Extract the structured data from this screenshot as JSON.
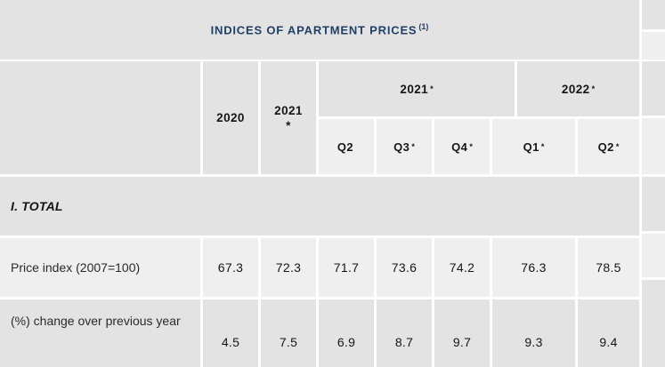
{
  "title": {
    "text": "INDICES OF APARTMENT PRICES",
    "footnote_marker": "(1)"
  },
  "colors": {
    "cell_gray": "#e3e3e3",
    "cell_light": "#efefef",
    "title_navy": "#1f4066",
    "text_dark": "#161616"
  },
  "header": {
    "year_2020": {
      "label": "2020",
      "mark": ""
    },
    "year_2021": {
      "label": "2021",
      "mark": "*"
    },
    "group_2021": {
      "label": "2021",
      "mark": "*"
    },
    "group_2022": {
      "label": "2022",
      "mark": "*"
    },
    "quarters": [
      {
        "label": "Q2",
        "mark": ""
      },
      {
        "label": "Q3",
        "mark": "*"
      },
      {
        "label": "Q4",
        "mark": "*"
      },
      {
        "label": "Q1",
        "mark": "*"
      },
      {
        "label": "Q2",
        "mark": "*"
      }
    ]
  },
  "section": {
    "label": "I. TOTAL"
  },
  "rows": [
    {
      "label": "Price index (2007=100)",
      "values": [
        "67.3",
        "72.3",
        "71.7",
        "73.6",
        "74.2",
        "76.3",
        "78.5"
      ]
    },
    {
      "label": "(%) change over previous year",
      "values": [
        "4.5",
        "7.5",
        "6.9",
        "8.7",
        "9.7",
        "9.3",
        "9.4"
      ]
    }
  ],
  "chart_data": {
    "type": "table",
    "title": "INDICES OF APARTMENT PRICES (1)",
    "section": "I. TOTAL",
    "columns": [
      "2020",
      "2021*",
      "2021* Q2",
      "2021* Q3*",
      "2021* Q4*",
      "2022* Q1*",
      "2022* Q2*"
    ],
    "rows": [
      {
        "label": "Price index (2007=100)",
        "values": [
          67.3,
          72.3,
          71.7,
          73.6,
          74.2,
          76.3,
          78.5
        ]
      },
      {
        "label": "(%) change over previous year",
        "values": [
          4.5,
          7.5,
          6.9,
          8.7,
          9.7,
          9.3,
          9.4
        ]
      }
    ]
  }
}
